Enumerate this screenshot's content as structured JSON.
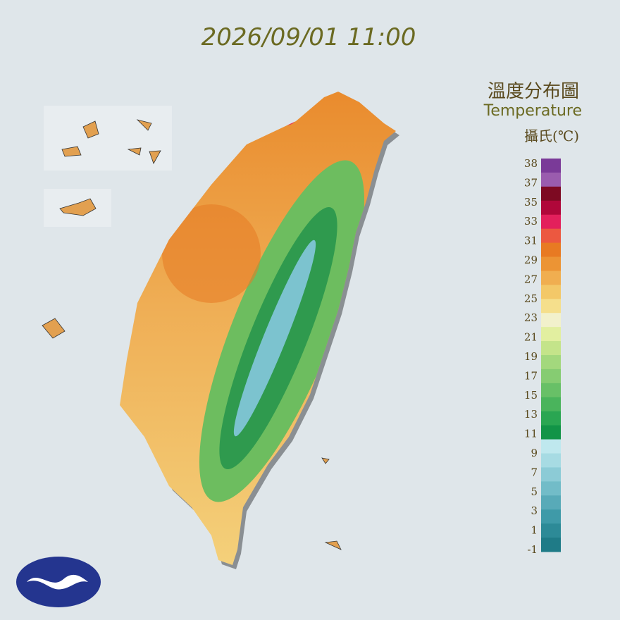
{
  "title": "2026/09/01 11:00",
  "legend": {
    "title": "溫度分布圖",
    "subtitle": "Temperature",
    "unit": "攝氏(℃)",
    "ticks": [
      "38",
      "37",
      "35",
      "33",
      "31",
      "29",
      "27",
      "25",
      "23",
      "21",
      "19",
      "17",
      "15",
      "13",
      "11",
      "9",
      "7",
      "5",
      "3",
      "1",
      "-1"
    ],
    "colors": [
      "#7a3a98",
      "#9a5cae",
      "#7d0a22",
      "#b0073a",
      "#e3205c",
      "#ec5840",
      "#e87a22",
      "#ec9434",
      "#f0ae50",
      "#f3c868",
      "#f5df8c",
      "#f2f1cc",
      "#e2efa0",
      "#c4e48a",
      "#a3d87d",
      "#86cc72",
      "#68c067",
      "#4ab45c",
      "#2aa652",
      "#129447",
      "#bfe8ee",
      "#a7dbe3",
      "#8ccbd6",
      "#72bcc8",
      "#58aab8",
      "#3f9aa8",
      "#2d8a97",
      "#1f7b87"
    ]
  }
}
